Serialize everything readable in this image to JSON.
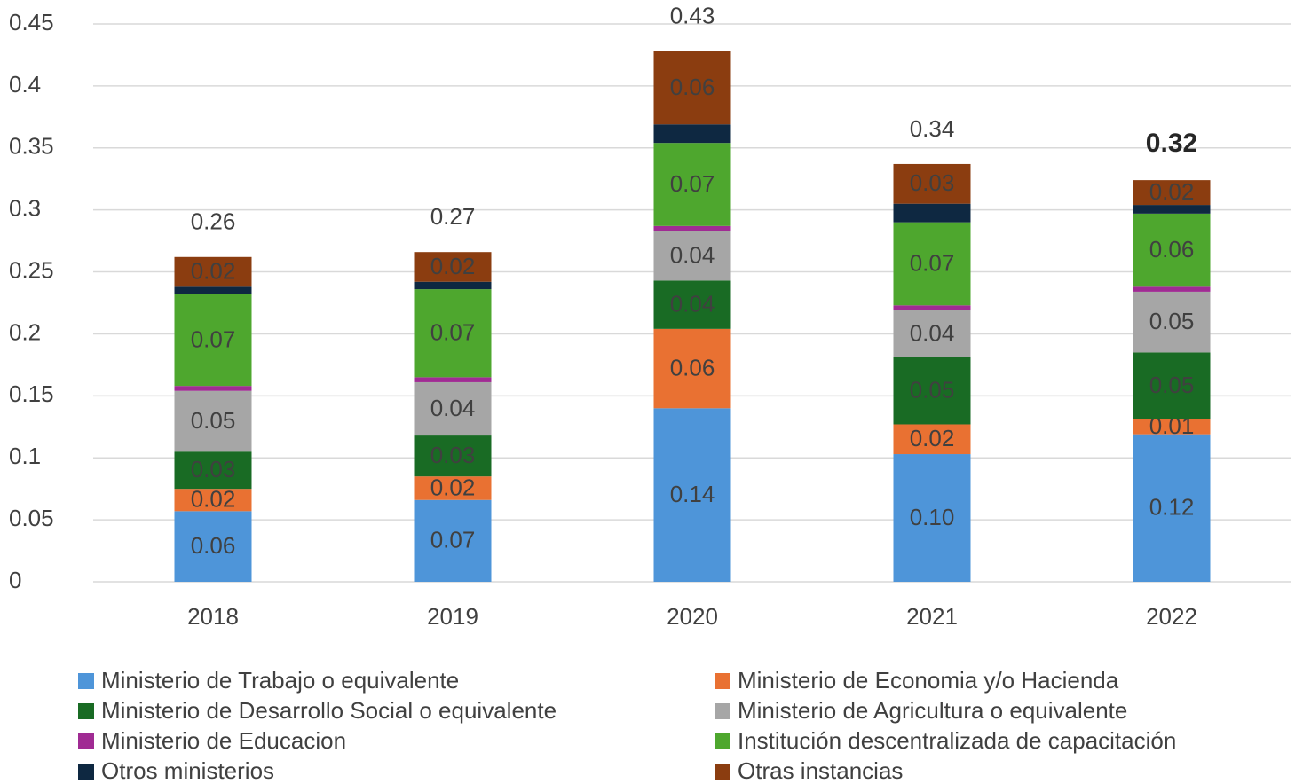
{
  "chart_data": {
    "type": "stacked_bar",
    "categories": [
      "2018",
      "2019",
      "2020",
      "2021",
      "2022"
    ],
    "ylim": [
      0,
      0.45
    ],
    "yticks": [
      0,
      0.05,
      0.1,
      0.15,
      0.2,
      0.25,
      0.3,
      0.35,
      0.4,
      0.45
    ],
    "grid": true,
    "series": [
      {
        "name": "Ministerio de Trabajo o equivalente",
        "color": "#4e95d9",
        "values": [
          0.057,
          0.066,
          0.14,
          0.103,
          0.119
        ],
        "value_labels": [
          "0.06",
          "0.07",
          "0.14",
          "0.10",
          "0.12"
        ]
      },
      {
        "name": "Ministerio de Economia y/o Hacienda",
        "color": "#e97132",
        "values": [
          0.018,
          0.019,
          0.064,
          0.024,
          0.012
        ],
        "value_labels": [
          "0.02",
          "0.02",
          "0.06",
          "0.02",
          "0.01"
        ]
      },
      {
        "name": "Ministerio de Desarrollo Social o equivalente",
        "color": "#196b24",
        "values": [
          0.03,
          0.033,
          0.039,
          0.054,
          0.054
        ],
        "value_labels": [
          "0.03",
          "0.03",
          "0.04",
          "0.05",
          "0.05"
        ]
      },
      {
        "name": "Ministerio de Agricultura o equivalente",
        "color": "#a6a6a6",
        "values": [
          0.049,
          0.043,
          0.04,
          0.038,
          0.049
        ],
        "value_labels": [
          "0.05",
          "0.04",
          "0.04",
          "0.04",
          "0.05"
        ]
      },
      {
        "name": "Ministerio de Educacion",
        "color": "#a02b93",
        "values": [
          0.004,
          0.004,
          0.004,
          0.004,
          0.004
        ]
      },
      {
        "name": "Institución descentralizada de capacitación",
        "color": "#4ea72e",
        "values": [
          0.074,
          0.071,
          0.067,
          0.067,
          0.059
        ],
        "value_labels": [
          "0.07",
          "0.07",
          "0.07",
          "0.07",
          "0.06"
        ]
      },
      {
        "name": "Otros ministerios",
        "color": "#0e2841",
        "values": [
          0.006,
          0.006,
          0.015,
          0.015,
          0.007
        ]
      },
      {
        "name": "Otras instancias",
        "color": "#8b3d10",
        "values": [
          0.024,
          0.024,
          0.059,
          0.032,
          0.02
        ],
        "value_labels": [
          "0.02",
          "0.02",
          "0.06",
          "0.03",
          "0.02"
        ]
      }
    ],
    "totals": [
      0.262,
      0.266,
      0.428,
      0.337,
      0.324
    ],
    "total_labels": [
      "0.26",
      "0.27",
      "0.43",
      "0.34",
      "0.32"
    ]
  }
}
